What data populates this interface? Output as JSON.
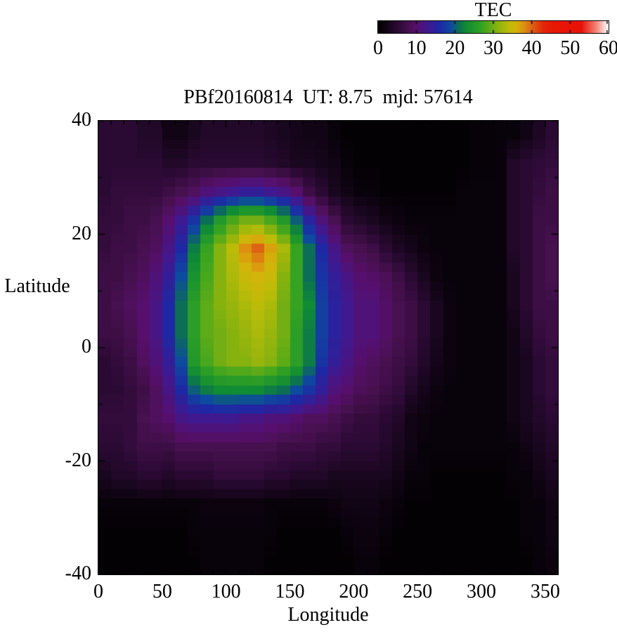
{
  "figure": {
    "title": "PBf20160814  UT: 8.75  mjd: 57614",
    "background": "#ffffff"
  },
  "colorbar": {
    "label": "TEC",
    "min": 0,
    "max": 60,
    "ticks": [
      0,
      10,
      20,
      30,
      40,
      50,
      60
    ]
  },
  "axes": {
    "xlabel": "Longitude",
    "ylabel": "Latitude",
    "x_ticks": [
      0,
      50,
      100,
      150,
      200,
      250,
      300,
      350
    ],
    "y_ticks": [
      40,
      20,
      0,
      -20,
      -40
    ],
    "x_range": [
      0,
      360
    ],
    "y_range": [
      -40,
      40
    ],
    "x_minor_step": 10,
    "y_minor_step": 10
  },
  "chart_data": {
    "type": "heatmap",
    "title": "PBf20160814  UT: 8.75  mjd: 57614",
    "xlabel": "Longitude",
    "ylabel": "Latitude",
    "value_label": "TEC",
    "x_range": [
      0,
      360
    ],
    "y_range": [
      -40,
      40
    ],
    "value_range": [
      0,
      60
    ],
    "lon_bin_deg": 10,
    "lat_bin_deg": 5,
    "lon_centers": [
      5,
      15,
      25,
      35,
      45,
      55,
      65,
      75,
      85,
      95,
      105,
      115,
      125,
      135,
      145,
      155,
      165,
      175,
      185,
      195,
      205,
      215,
      225,
      235,
      245,
      255,
      265,
      275,
      285,
      295,
      305,
      315,
      325,
      335,
      345,
      355
    ],
    "lat_centers": [
      37.5,
      32.5,
      27.5,
      22.5,
      17.5,
      12.5,
      7.5,
      2.5,
      -2.5,
      -7.5,
      -12.5,
      -17.5,
      -22.5,
      -27.5,
      -32.5,
      -37.5
    ],
    "values": [
      [
        5,
        5,
        5,
        4,
        4,
        2,
        2,
        3,
        4,
        4,
        4,
        4,
        4,
        3.5,
        3,
        2.5,
        2,
        2,
        1,
        0.5,
        0.5,
        0.5,
        0.5,
        0.5,
        0.3,
        0.3,
        0.3,
        0.3,
        0.5,
        0.8,
        0.8,
        1,
        1,
        2,
        3.5,
        5
      ],
      [
        5,
        5,
        5,
        5,
        5,
        4,
        4,
        5,
        5,
        5,
        5,
        5,
        5,
        4.5,
        4,
        3,
        3,
        2.5,
        2,
        1,
        0.5,
        0.5,
        0.5,
        0.5,
        0.3,
        0.3,
        0.3,
        0.3,
        0.5,
        0.8,
        0.8,
        1,
        4,
        5,
        5.5,
        6
      ],
      [
        5,
        6,
        6,
        6,
        6,
        7,
        8,
        9,
        11,
        12,
        13,
        14,
        14,
        13,
        12,
        10,
        7,
        5,
        3,
        2,
        1,
        1,
        0.5,
        0.5,
        0.5,
        0.5,
        0.5,
        0.5,
        1,
        1,
        1,
        1,
        4,
        5,
        6,
        7
      ],
      [
        6,
        6,
        7,
        7,
        8,
        10,
        13,
        17,
        21,
        25,
        28,
        30,
        30,
        28,
        25,
        20,
        15,
        11,
        8,
        5,
        4,
        3,
        2,
        1.5,
        1,
        1,
        1,
        1,
        1,
        1,
        1,
        1,
        4,
        5,
        7,
        7
      ],
      [
        6,
        7,
        7,
        8,
        9,
        12,
        16,
        22,
        27,
        31,
        34,
        38,
        40,
        37,
        33,
        27,
        21,
        16,
        12,
        9,
        8,
        7,
        5,
        3.5,
        2.5,
        1.5,
        1,
        1,
        1,
        1,
        1,
        1,
        4,
        5,
        7,
        8
      ],
      [
        7,
        7,
        8,
        9,
        11,
        14,
        19,
        24,
        28,
        31,
        33,
        35,
        36,
        35,
        31,
        27,
        21,
        17,
        14,
        12,
        10,
        9.5,
        8.5,
        7,
        5,
        3,
        1.5,
        1,
        1,
        1,
        1,
        1,
        3,
        5,
        7,
        8
      ],
      [
        7,
        8,
        9,
        10,
        12,
        16,
        21,
        26,
        29,
        31,
        32,
        33,
        34,
        33,
        30,
        27,
        23,
        18,
        15,
        13,
        11,
        11,
        9.5,
        8,
        7,
        5,
        3,
        1.5,
        1,
        1,
        1,
        1,
        3,
        5,
        7,
        7
      ],
      [
        7,
        7,
        8,
        10,
        12,
        16,
        21,
        26,
        29,
        30,
        31,
        32,
        33,
        32,
        30,
        26,
        22,
        18,
        15,
        13,
        11,
        11,
        9.5,
        8,
        7,
        5,
        3,
        1.5,
        1,
        1,
        1,
        1,
        2,
        4,
        6,
        7
      ],
      [
        5,
        6,
        7,
        9,
        11,
        14,
        19,
        25,
        28,
        30,
        31,
        31,
        32,
        31,
        29,
        26,
        22,
        17,
        14,
        12,
        10,
        9,
        8,
        7,
        6,
        4,
        2.5,
        1.5,
        1,
        1,
        1,
        1,
        2,
        3,
        5,
        6
      ],
      [
        5,
        5,
        6,
        7,
        9,
        12,
        16,
        20,
        22,
        23,
        23,
        23,
        23,
        22,
        21,
        19,
        17,
        14,
        11,
        10,
        8.5,
        8,
        7,
        6,
        4,
        2.5,
        1.5,
        1,
        1,
        1,
        1,
        1,
        2,
        3,
        5,
        6
      ],
      [
        6,
        6,
        6,
        8,
        9,
        10,
        12,
        13,
        13,
        13,
        13,
        12,
        12,
        11,
        11,
        10,
        9,
        9,
        8,
        7,
        6,
        6,
        5,
        4,
        2,
        1.5,
        1,
        1,
        1,
        1,
        1,
        1,
        2,
        3,
        4,
        5
      ],
      [
        5,
        5,
        6,
        7,
        7,
        7,
        8,
        8,
        8,
        8,
        8,
        8,
        8,
        8,
        7,
        7,
        7,
        6,
        6,
        5,
        5,
        5,
        4,
        3,
        2,
        1,
        1,
        1,
        1,
        1,
        1,
        1,
        1,
        2,
        3,
        4
      ],
      [
        3,
        4,
        4,
        5,
        5,
        4,
        5,
        5,
        5,
        6,
        6,
        6,
        6,
        5,
        5,
        4,
        4,
        4,
        3,
        3,
        3,
        3,
        3,
        2,
        1,
        1,
        0.5,
        0.5,
        0.5,
        0.5,
        0.5,
        0.5,
        1,
        1,
        2,
        3
      ],
      [
        1,
        1,
        1,
        1,
        1,
        1,
        1,
        1,
        1.5,
        1.5,
        1.5,
        1.5,
        1.5,
        1,
        1,
        1,
        1,
        1,
        1.5,
        2,
        2,
        2,
        1.5,
        1,
        0.5,
        0.5,
        0.5,
        0.5,
        0.5,
        0.5,
        0.5,
        0.5,
        0.5,
        1,
        1,
        2
      ],
      [
        0.5,
        0.5,
        0.5,
        0.5,
        0.5,
        0.5,
        0.5,
        1,
        1,
        1,
        1,
        1,
        1,
        1,
        0.5,
        0.5,
        0.5,
        0.5,
        0.5,
        1,
        1.5,
        1.5,
        1,
        0.5,
        0.5,
        0.5,
        0.5,
        0.5,
        0.5,
        0.5,
        0.5,
        0.5,
        0.5,
        1,
        1,
        2
      ],
      [
        0.5,
        0.5,
        0.5,
        0.5,
        0.5,
        0.5,
        0.5,
        0.5,
        1,
        1,
        1,
        1,
        1,
        0.5,
        0.5,
        0.5,
        0.5,
        0.5,
        0.5,
        0.5,
        1,
        1,
        0.5,
        0.5,
        0.5,
        0.5,
        0.5,
        0.5,
        0.5,
        0.5,
        0.5,
        0.5,
        0.5,
        0.5,
        1,
        1.5
      ]
    ],
    "colormap_stops": [
      [
        0,
        "#000000"
      ],
      [
        5,
        "#2a0a33"
      ],
      [
        8,
        "#47104f"
      ],
      [
        10,
        "#570f6d"
      ],
      [
        13,
        "#3f1990"
      ],
      [
        16,
        "#1e28a4"
      ],
      [
        19,
        "#0d4b9e"
      ],
      [
        21,
        "#0c6e55"
      ],
      [
        23,
        "#108c34"
      ],
      [
        27,
        "#35a321"
      ],
      [
        31,
        "#86b20f"
      ],
      [
        34,
        "#bcbc08"
      ],
      [
        36,
        "#d4b40a"
      ],
      [
        38,
        "#dd9010"
      ],
      [
        40,
        "#dd6414"
      ],
      [
        43,
        "#e02808"
      ],
      [
        46,
        "#e81504"
      ],
      [
        53,
        "#e81206"
      ],
      [
        57,
        "#f4887c"
      ],
      [
        60,
        "#ffffff"
      ]
    ],
    "legend_position": "top-right-colorbar",
    "grid": false
  }
}
